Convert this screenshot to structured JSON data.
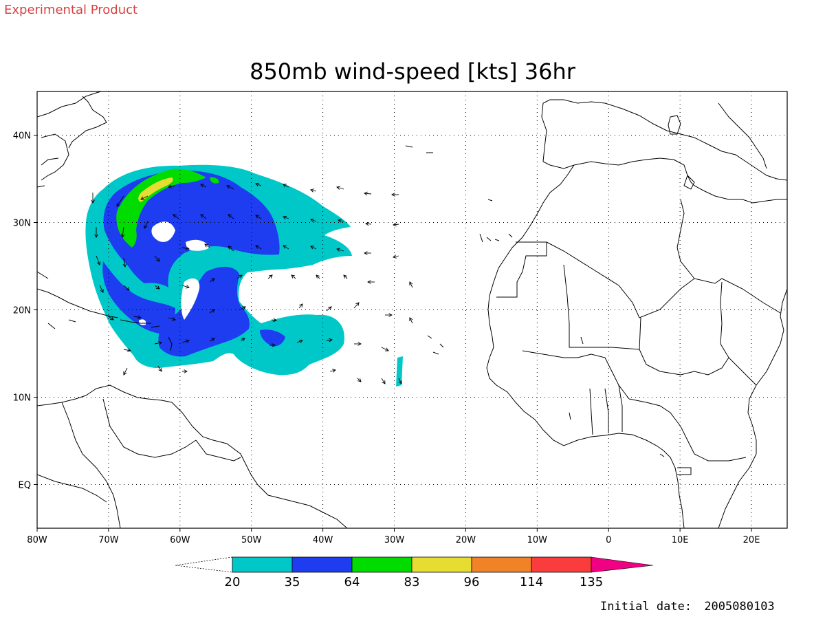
{
  "header": {
    "product_label": "Experimental Product",
    "title": "850mb wind-speed [kts] 36hr"
  },
  "footer": {
    "initial_date_label": "Initial date:",
    "initial_date": "2005080103"
  },
  "colors": {
    "product_label": "#d84040",
    "c20": "#00c8c8",
    "c35": "#1e3cf0",
    "c64": "#00dc00",
    "c83": "#e6dc32",
    "c96": "#f08228",
    "c114": "#fa3c3c",
    "c135": "#f00082"
  },
  "map": {
    "lon_range": [
      -80,
      25
    ],
    "lat_range": [
      -5,
      45
    ],
    "x_ticks": [
      {
        "lon": -80,
        "label": "80W"
      },
      {
        "lon": -70,
        "label": "70W"
      },
      {
        "lon": -60,
        "label": "60W"
      },
      {
        "lon": -50,
        "label": "50W"
      },
      {
        "lon": -40,
        "label": "40W"
      },
      {
        "lon": -30,
        "label": "30W"
      },
      {
        "lon": -20,
        "label": "20W"
      },
      {
        "lon": -10,
        "label": "10W"
      },
      {
        "lon": 0,
        "label": "0"
      },
      {
        "lon": 10,
        "label": "10E"
      },
      {
        "lon": 20,
        "label": "20E"
      }
    ],
    "y_ticks": [
      {
        "lat": 40,
        "label": "40N"
      },
      {
        "lat": 30,
        "label": "30N"
      },
      {
        "lat": 20,
        "label": "20N"
      },
      {
        "lat": 10,
        "label": "10N"
      },
      {
        "lat": 0,
        "label": "EQ"
      }
    ],
    "grid": true,
    "colorbar": {
      "levels": [
        "20",
        "35",
        "64",
        "83",
        "96",
        "114",
        "135"
      ],
      "fill_keys": [
        "c20",
        "c35",
        "c64",
        "c83",
        "c96",
        "c114",
        "c135"
      ]
    }
  }
}
